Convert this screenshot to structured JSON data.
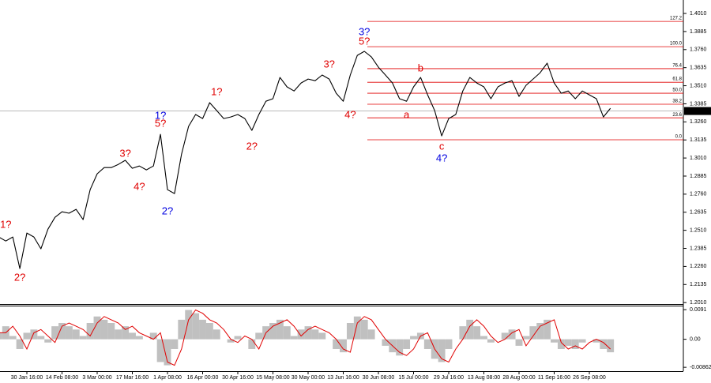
{
  "chart_data": {
    "type": "line",
    "categories": [
      null,
      null,
      null,
      null,
      "30 Jan 16:00",
      null,
      null,
      null,
      null,
      "14 Feb 08:00",
      null,
      null,
      null,
      null,
      "3 Mar 00:00",
      null,
      null,
      null,
      null,
      "17 Mar 16:00",
      null,
      null,
      null,
      null,
      "1 Apr 08:00",
      null,
      null,
      null,
      null,
      "16 Apr 00:00",
      null,
      null,
      null,
      null,
      "30 Apr 16:00",
      null,
      null,
      null,
      null,
      "15 May 08:00",
      null,
      null,
      null,
      null,
      "30 May 00:00",
      null,
      null,
      null,
      null,
      "13 Jun 16:00",
      null,
      null,
      null,
      null,
      "30 Jun 08:00",
      null,
      null,
      null,
      null,
      "15 Jul 00:00",
      null,
      null,
      null,
      null,
      "29 Jul 16:00",
      null,
      null,
      null,
      null,
      "13 Aug 08:00",
      null,
      null,
      null,
      null,
      "28 Aug 00:00",
      null,
      null,
      null,
      null,
      "11 Sep 16:00",
      null,
      null,
      null,
      null,
      "26 Sep 08:00",
      null,
      null,
      null
    ],
    "values": [
      1.2464,
      1.2436,
      1.2464,
      1.2245,
      1.2491,
      1.2464,
      1.2382,
      1.2518,
      1.26,
      1.2638,
      1.2628,
      1.2655,
      1.2584,
      1.2791,
      1.2901,
      1.2944,
      1.2944,
      1.2966,
      1.2994,
      1.2939,
      1.2955,
      1.2928,
      1.2955,
      1.3174,
      1.2791,
      1.2764,
      1.3037,
      1.3229,
      1.3311,
      1.3283,
      1.3393,
      1.3338,
      1.3283,
      1.3294,
      1.3311,
      1.3283,
      1.3201,
      1.3311,
      1.3403,
      1.342,
      1.3567,
      1.3502,
      1.3474,
      1.3529,
      1.3556,
      1.3545,
      1.3584,
      1.3556,
      1.3458,
      1.3403,
      1.3584,
      1.372,
      1.3748,
      1.3709,
      1.3638,
      1.3584,
      1.3529,
      1.342,
      1.3403,
      1.3502,
      1.3567,
      1.3447,
      1.3338,
      1.3163,
      1.3283,
      1.3311,
      1.3474,
      1.3567,
      1.3529,
      1.3502,
      1.342,
      1.3502,
      1.3529,
      1.3545,
      1.3436,
      1.3513,
      1.3556,
      1.36,
      1.3666,
      1.3529,
      1.3458,
      1.3474,
      1.342,
      1.3474,
      1.3447,
      1.342,
      1.3294,
      1.3354
    ],
    "color": "#000000",
    "ylim": [
      1.2,
      1.4103
    ],
    "yticks": [
      {
        "value": 1.401,
        "label": "1.4010"
      },
      1.3885,
      {
        "value": 1.376,
        "label": "1.3760"
      },
      1.3635,
      {
        "value": 1.351,
        "label": "1.3510"
      },
      1.3385,
      {
        "value": 1.326,
        "label": "1.3260"
      },
      1.3135,
      {
        "value": 1.301,
        "label": "1.3010"
      },
      1.2885,
      {
        "value": 1.276,
        "label": "1.2760"
      },
      1.2635,
      {
        "value": 1.251,
        "label": "1.2510"
      },
      1.2385,
      {
        "value": 1.226,
        "label": "1.2260"
      },
      1.2135,
      {
        "value": 1.201,
        "label": "1.2010"
      }
    ],
    "last_price": 1.33351,
    "fib_color": "#e00000",
    "fib_levels": [
      {
        "price": 1.3955,
        "label": "127.2"
      },
      {
        "price": 1.378,
        "label": "100.0"
      },
      {
        "price": 1.3628,
        "label": "76.4"
      },
      {
        "price": 1.3534,
        "label": "61.8"
      },
      {
        "price": 1.3458,
        "label": "50.0"
      },
      {
        "price": 1.3382,
        "label": "38.2"
      },
      {
        "price": 1.3288,
        "label": "23.6"
      },
      {
        "price": 1.3136,
        "label": "0.0"
      }
    ],
    "annotations": [
      {
        "text": "1?",
        "color": "#e00000",
        "x": 1,
        "y": 1.2546
      },
      {
        "text": "2?",
        "color": "#e00000",
        "x": 3,
        "y": 1.2179
      },
      {
        "text": "3?",
        "color": "#e00000",
        "x": 18,
        "y": 1.3037
      },
      {
        "text": "4?",
        "color": "#e00000",
        "x": 20,
        "y": 1.2808
      },
      {
        "text": "1?",
        "color": "#0000e0",
        "x": 23,
        "y": 1.33
      },
      {
        "text": "5?",
        "color": "#e00000",
        "x": 23,
        "y": 1.3245
      },
      {
        "text": "2?",
        "color": "#0000e0",
        "x": 24,
        "y": 1.2638
      },
      {
        "text": "1?",
        "color": "#e00000",
        "x": 31,
        "y": 1.3464
      },
      {
        "text": "2?",
        "color": "#e00000",
        "x": 36,
        "y": 1.3087
      },
      {
        "text": "3?",
        "color": "#e00000",
        "x": 47,
        "y": 1.3655
      },
      {
        "text": "4?",
        "color": "#e00000",
        "x": 50,
        "y": 1.3305
      },
      {
        "text": "3?",
        "color": "#0000e0",
        "x": 52,
        "y": 1.3879
      },
      {
        "text": "5?",
        "color": "#e00000",
        "x": 52,
        "y": 1.3813
      },
      {
        "text": "b",
        "color": "#e00000",
        "x": 60,
        "y": 1.3627
      },
      {
        "text": "a",
        "color": "#e00000",
        "x": 58,
        "y": 1.3305
      },
      {
        "text": "c",
        "color": "#e00000",
        "x": 63,
        "y": 1.3087
      },
      {
        "text": "4?",
        "color": "#0000e0",
        "x": 63,
        "y": 1.3005
      }
    ],
    "oscillator": {
      "values": [
        0.002,
        0.004,
        0.001,
        -0.003,
        0.002,
        0.003,
        0.001,
        -0.001,
        0.004,
        0.005,
        0.004,
        0.003,
        0.001,
        0.005,
        0.007,
        0.006,
        0.005,
        0.003,
        0.004,
        0.002,
        0.001,
        0,
        0.002,
        -0.007,
        -0.008,
        -0.003,
        0.006,
        0.009,
        0.008,
        0.006,
        0.005,
        0.003,
        0,
        -0.001,
        0.001,
        0,
        -0.003,
        0.002,
        0.004,
        0.005,
        0.006,
        0.004,
        0.001,
        0.003,
        0.004,
        0.003,
        0.002,
        0,
        -0.003,
        -0.004,
        0.005,
        0.007,
        0.006,
        0.003,
        0,
        -0.002,
        -0.004,
        -0.005,
        -0.003,
        0.001,
        0.002,
        -0.003,
        -0.006,
        -0.007,
        -0.003,
        0,
        0.004,
        0.006,
        0.004,
        0.001,
        -0.001,
        0,
        0.002,
        0.003,
        -0.002,
        0.001,
        0.004,
        0.005,
        0.006,
        -0.001,
        -0.003,
        -0.002,
        -0.003,
        -0.001,
        0,
        -0.001,
        -0.003,
        -0.004
      ],
      "signal": [
        0.002,
        0.002,
        0.004,
        0.001,
        -0.003,
        0.002,
        0.003,
        0.001,
        -0.001,
        0.004,
        0.005,
        0.004,
        0.003,
        0.001,
        0.005,
        0.007,
        0.006,
        0.005,
        0.003,
        0.004,
        0.002,
        0.001,
        0,
        0.002,
        -0.007,
        -0.008,
        -0.003,
        0.006,
        0.009,
        0.008,
        0.006,
        0.005,
        0.003,
        0,
        -0.001,
        0.001,
        0,
        -0.003,
        0.002,
        0.004,
        0.005,
        0.006,
        0.004,
        0.001,
        0.003,
        0.004,
        0.003,
        0.002,
        0,
        -0.003,
        -0.004,
        0.005,
        0.007,
        0.006,
        0.003,
        0,
        -0.002,
        -0.004,
        -0.005,
        -0.003,
        0.001,
        0.002,
        -0.003,
        -0.006,
        -0.007,
        -0.003,
        0,
        0.004,
        0.006,
        0.004,
        0.001,
        -0.001,
        0,
        0.002,
        0.003,
        -0.002,
        0.001,
        0.004,
        0.005,
        0.006,
        -0.001,
        -0.003,
        -0.002,
        -0.003,
        -0.001,
        0,
        -0.001,
        -0.003
      ],
      "color": "#c0c0c0",
      "signal_color": "#e00000",
      "ylim": [
        -0.0098,
        0.0101
      ],
      "yticks": [
        0.0091,
        {
          "value": 0,
          "label": "0.00"
        },
        -0.00862
      ]
    }
  }
}
